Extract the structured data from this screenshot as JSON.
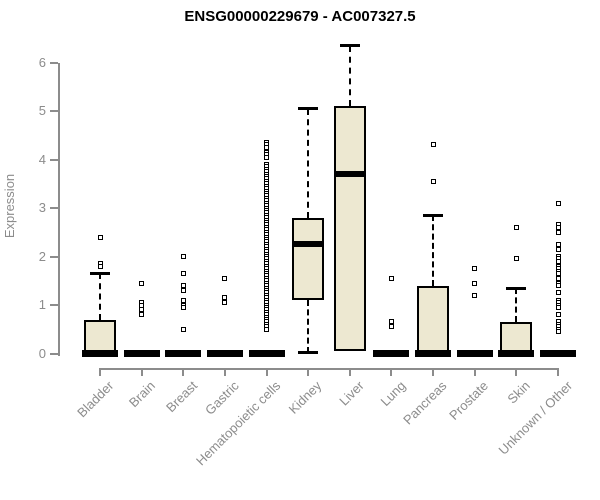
{
  "chart_data": {
    "type": "boxplot",
    "title": "ENSG00000229679 - AC007327.5",
    "ylabel": "Expression",
    "xlabel": "",
    "ylim": [
      0,
      6.5
    ],
    "yticks": [
      0,
      1,
      2,
      3,
      4,
      5,
      6
    ],
    "grid": false,
    "legend": false,
    "colors": {
      "box_fill": "#EDE8D1",
      "box_border": "#000000",
      "axis": "#8C8C8C",
      "tick_text": "#8C8C8C",
      "title_text": "#000000"
    },
    "categories": [
      "Bladder",
      "Brain",
      "Breast",
      "Gastric",
      "Hematopoietic cells",
      "Kidney",
      "Liver",
      "Lung",
      "Pancreas",
      "Prostate",
      "Skin",
      "Unknown / Other"
    ],
    "series": [
      {
        "category": "Bladder",
        "q1": 0,
        "median": 0,
        "q3": 0.7,
        "whisker_low": 0,
        "whisker_high": 1.65,
        "outliers": [
          2.4,
          1.85,
          1.8
        ]
      },
      {
        "category": "Brain",
        "q1": 0,
        "median": 0,
        "q3": 0,
        "whisker_low": 0,
        "whisker_high": 0,
        "outliers": [
          1.45,
          1.05,
          1.0,
          0.9,
          0.8
        ]
      },
      {
        "category": "Breast",
        "q1": 0,
        "median": 0,
        "q3": 0,
        "whisker_low": 0,
        "whisker_high": 0,
        "outliers": [
          2.0,
          1.65,
          1.4,
          1.3,
          1.1,
          1.0,
          0.95,
          0.5
        ]
      },
      {
        "category": "Gastric",
        "q1": 0,
        "median": 0,
        "q3": 0,
        "whisker_low": 0,
        "whisker_high": 0,
        "outliers": [
          1.55,
          1.15,
          1.05
        ]
      },
      {
        "category": "Hematopoietic cells",
        "q1": 0,
        "median": 0,
        "q3": 0,
        "whisker_low": 0,
        "whisker_high": 0,
        "outliers": [
          4.35,
          4.3,
          4.25,
          4.15,
          4.1,
          4.05,
          3.9,
          3.85,
          3.8,
          3.75,
          3.7,
          3.65,
          3.6,
          3.55,
          3.5,
          3.45,
          3.4,
          3.35,
          3.3,
          3.25,
          3.2,
          3.15,
          3.1,
          3.05,
          3.0,
          2.95,
          2.9,
          2.85,
          2.8,
          2.75,
          2.7,
          2.65,
          2.6,
          2.55,
          2.5,
          2.45,
          2.4,
          2.35,
          2.3,
          2.25,
          2.2,
          2.15,
          2.1,
          2.05,
          2.0,
          1.95,
          1.9,
          1.85,
          1.8,
          1.75,
          1.7,
          1.65,
          1.6,
          1.55,
          1.5,
          1.45,
          1.4,
          1.35,
          1.3,
          1.25,
          1.2,
          1.15,
          1.1,
          1.05,
          1.0,
          0.95,
          0.9,
          0.85,
          0.8,
          0.75,
          0.7,
          0.65,
          0.6,
          0.55,
          0.5
        ]
      },
      {
        "category": "Kidney",
        "q1": 1.1,
        "median": 2.25,
        "q3": 2.8,
        "whisker_low": 0.02,
        "whisker_high": 5.05,
        "outliers": []
      },
      {
        "category": "Liver",
        "q1": 0.05,
        "median": 3.7,
        "q3": 5.1,
        "whisker_low": 0.05,
        "whisker_high": 6.35,
        "outliers": []
      },
      {
        "category": "Lung",
        "q1": 0,
        "median": 0,
        "q3": 0,
        "whisker_low": 0,
        "whisker_high": 0,
        "outliers": [
          1.55,
          0.65,
          0.55
        ]
      },
      {
        "category": "Pancreas",
        "q1": 0,
        "median": 0,
        "q3": 1.4,
        "whisker_low": 0,
        "whisker_high": 2.85,
        "outliers": [
          4.3,
          3.55
        ]
      },
      {
        "category": "Prostate",
        "q1": 0,
        "median": 0,
        "q3": 0,
        "whisker_low": 0,
        "whisker_high": 0,
        "outliers": [
          1.75,
          1.45,
          1.2
        ]
      },
      {
        "category": "Skin",
        "q1": 0,
        "median": 0,
        "q3": 0.65,
        "whisker_low": 0,
        "whisker_high": 1.35,
        "outliers": [
          2.6,
          1.95
        ]
      },
      {
        "category": "Unknown / Other",
        "q1": 0,
        "median": 0,
        "q3": 0,
        "whisker_low": 0,
        "whisker_high": 0,
        "outliers": [
          3.1,
          2.65,
          2.6,
          2.5,
          2.25,
          2.15,
          2.0,
          1.95,
          1.9,
          1.8,
          1.75,
          1.7,
          1.65,
          1.55,
          1.45,
          1.4,
          1.25,
          1.1,
          1.05,
          1.0,
          0.95,
          0.8,
          0.65,
          0.6,
          0.55,
          0.5,
          0.45
        ]
      }
    ]
  }
}
